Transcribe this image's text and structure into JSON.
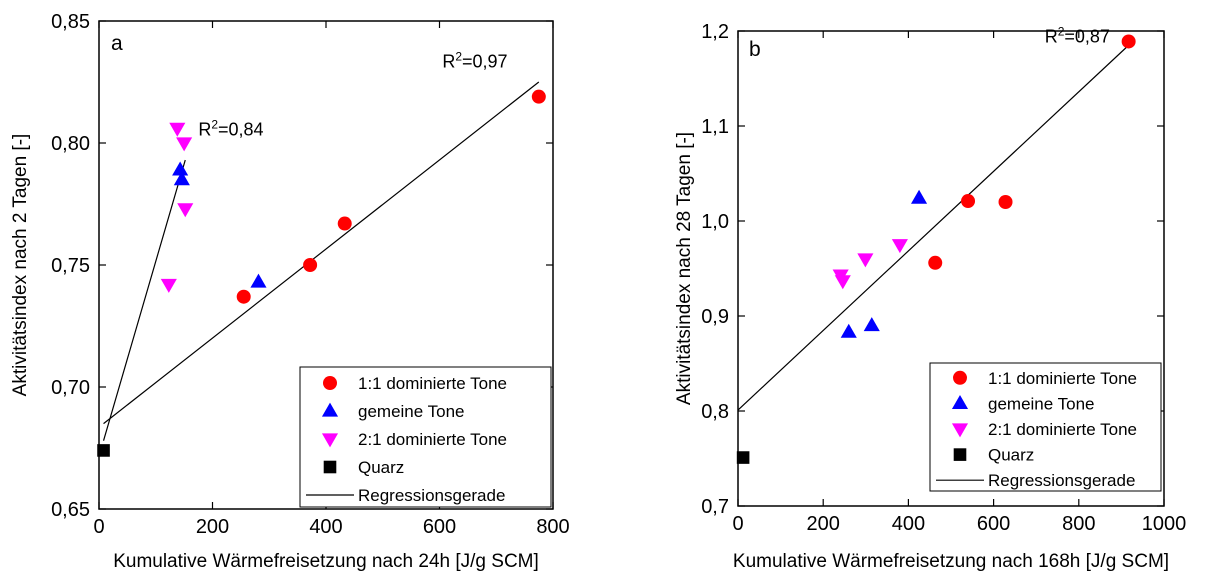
{
  "chart_data": [
    {
      "type": "scatter",
      "panel_label": "a",
      "xlabel": "Kumulative Wärmefreisetzung nach 24h [J/g SCM]",
      "ylabel": "Aktivitätsindex nach 2 Tagen [-]",
      "xlim": [
        0,
        800
      ],
      "ylim": [
        0.65,
        0.85
      ],
      "xticks": [
        0,
        200,
        400,
        600,
        800
      ],
      "xtick_labels": [
        "0",
        "200",
        "400",
        "600",
        "800"
      ],
      "yticks": [
        0.65,
        0.7,
        0.75,
        0.8,
        0.85
      ],
      "ytick_labels": [
        "0,65",
        "0,70",
        "0,75",
        "0,80",
        "0,85"
      ],
      "grid": false,
      "legend_position": "bottom-right",
      "series": [
        {
          "name": "1:1 dominierte Tone",
          "marker": "circle",
          "color": "#ff0000",
          "points": [
            [
              255,
              0.737
            ],
            [
              372,
              0.75
            ],
            [
              433,
              0.767
            ],
            [
              775,
              0.819
            ]
          ]
        },
        {
          "name": "gemeine Tone",
          "marker": "triangle-up",
          "color": "#0000ff",
          "points": [
            [
              143,
              0.789
            ],
            [
              146,
              0.785
            ],
            [
              281,
              0.743
            ]
          ]
        },
        {
          "name": "2:1 dominierte Tone",
          "marker": "triangle-down",
          "color": "#ff00ff",
          "points": [
            [
              138,
              0.806
            ],
            [
              150,
              0.8
            ],
            [
              152,
              0.773
            ],
            [
              123,
              0.742
            ]
          ]
        },
        {
          "name": "Quarz",
          "marker": "square",
          "color": "#000000",
          "points": [
            [
              8,
              0.674
            ]
          ]
        }
      ],
      "regression_name": "Regressionsgerade",
      "regression_lines": [
        {
          "from": [
            8,
            0.685
          ],
          "to": [
            775,
            0.825
          ],
          "r2_prefix": "R",
          "r2_sup": "2",
          "r2_value": "=0,97",
          "label_at": [
            605,
            0.831
          ]
        },
        {
          "from": [
            8,
            0.678
          ],
          "to": [
            152,
            0.793
          ],
          "r2_prefix": "R",
          "r2_sup": "2",
          "r2_value": "=0,84",
          "label_at": [
            175,
            0.803
          ]
        }
      ]
    },
    {
      "type": "scatter",
      "panel_label": "b",
      "xlabel": "Kumulative Wärmefreisetzung nach 168h [J/g SCM]",
      "ylabel": "Aktivitätsindex nach 28 Tagen [-]",
      "xlim": [
        0,
        1000
      ],
      "ylim": [
        0.7,
        1.2
      ],
      "xticks": [
        0,
        200,
        400,
        600,
        800,
        1000
      ],
      "xtick_labels": [
        "0",
        "200",
        "400",
        "600",
        "800",
        "1000"
      ],
      "yticks": [
        0.7,
        0.8,
        0.9,
        1.0,
        1.1,
        1.2
      ],
      "ytick_labels": [
        "0,7",
        "0,8",
        "0,9",
        "1,0",
        "1,1",
        "1,2"
      ],
      "grid": false,
      "legend_position": "bottom-right",
      "series": [
        {
          "name": "1:1 dominierte Tone",
          "marker": "circle",
          "color": "#ff0000",
          "points": [
            [
              463,
              0.956
            ],
            [
              540,
              1.021
            ],
            [
              628,
              1.02
            ],
            [
              917,
              1.189
            ]
          ]
        },
        {
          "name": "gemeine Tone",
          "marker": "triangle-up",
          "color": "#0000ff",
          "points": [
            [
              260,
              0.883
            ],
            [
              314,
              0.89
            ],
            [
              425,
              1.024
            ]
          ]
        },
        {
          "name": "2:1 dominierte Tone",
          "marker": "triangle-down",
          "color": "#ff00ff",
          "points": [
            [
              241,
              0.943
            ],
            [
              246,
              0.937
            ],
            [
              299,
              0.96
            ],
            [
              380,
              0.975
            ]
          ]
        },
        {
          "name": "Quarz",
          "marker": "square",
          "color": "#000000",
          "points": [
            [
              12,
              0.751
            ]
          ]
        }
      ],
      "regression_name": "Regressionsgerade",
      "regression_lines": [
        {
          "from": [
            0,
            0.801
          ],
          "to": [
            917,
            1.185
          ],
          "r2_prefix": "R",
          "r2_sup": "2",
          "r2_value": "=0,87",
          "label_at": [
            720,
            1.188
          ]
        }
      ]
    }
  ]
}
